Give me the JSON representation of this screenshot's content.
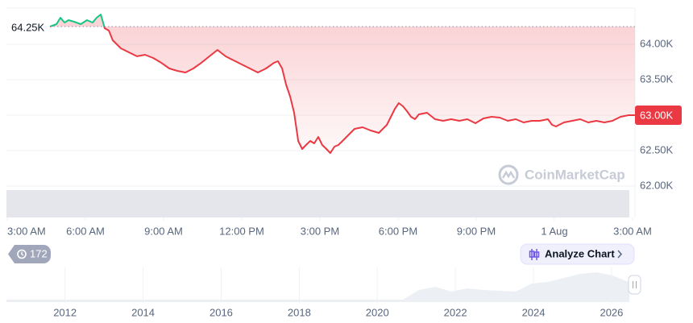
{
  "chart_data": {
    "type": "line",
    "x": [
      1.64,
      1.89,
      2.04,
      2.2,
      2.35,
      2.57,
      2.82,
      3.06,
      3.28,
      3.43,
      3.59,
      3.74,
      3.9,
      4.05,
      4.36,
      4.67,
      4.98,
      5.29,
      5.6,
      5.91,
      6.22,
      6.53,
      6.84,
      7.14,
      7.45,
      7.76,
      8.07,
      8.38,
      8.69,
      9.0,
      9.31,
      9.62,
      9.93,
      10.24,
      10.39,
      10.55,
      10.7,
      10.86,
      11.01,
      11.17,
      11.32,
      11.47,
      11.63,
      11.78,
      11.94,
      12.09,
      12.25,
      12.4,
      12.56,
      12.71,
      12.87,
      13.02,
      13.33,
      13.64,
      13.95,
      14.26,
      14.57,
      14.88,
      15.03,
      15.19,
      15.34,
      15.5,
      15.65,
      15.8,
      16.11,
      16.42,
      16.73,
      17.04,
      17.35,
      17.66,
      17.97,
      18.28,
      18.59,
      18.9,
      19.21,
      19.52,
      19.82,
      20.13,
      20.44,
      20.75,
      20.91,
      21.06,
      21.37,
      21.68,
      21.99,
      22.3,
      22.61,
      22.92,
      23.23,
      23.54,
      23.85,
      24.09
    ],
    "series": [
      {
        "color": "#ea3943",
        "up_color": "#16c784",
        "values": [
          64250,
          64284,
          64375,
          64307,
          64341,
          64318,
          64284,
          64341,
          64307,
          64375,
          64420,
          64227,
          64193,
          64057,
          63943,
          63886,
          63830,
          63852,
          63807,
          63739,
          63659,
          63625,
          63602,
          63659,
          63739,
          63830,
          63920,
          63830,
          63773,
          63716,
          63659,
          63602,
          63659,
          63739,
          63761,
          63659,
          63432,
          63261,
          63034,
          62636,
          62523,
          62580,
          62636,
          62602,
          62693,
          62580,
          62523,
          62466,
          62557,
          62580,
          62636,
          62693,
          62807,
          62830,
          62784,
          62750,
          62864,
          63091,
          63170,
          63125,
          63057,
          62977,
          62943,
          63011,
          63034,
          62943,
          62920,
          62943,
          62920,
          62943,
          62886,
          62955,
          62977,
          62966,
          62920,
          62943,
          62898,
          62920,
          62920,
          62943,
          62864,
          62841,
          62898,
          62920,
          62943,
          62898,
          62920,
          62898,
          62920,
          62977,
          63000,
          63000
        ]
      }
    ],
    "xlim": [
      0,
      24.1
    ],
    "xticks": [
      {
        "value": 0,
        "label": "3:00 AM"
      },
      {
        "value": 3,
        "label": "6:00 AM"
      },
      {
        "value": 6,
        "label": "9:00 AM"
      },
      {
        "value": 9,
        "label": "12:00 PM"
      },
      {
        "value": 12,
        "label": "3:00 PM"
      },
      {
        "value": 15,
        "label": "6:00 PM"
      },
      {
        "value": 18,
        "label": "9:00 PM"
      },
      {
        "value": 21,
        "label": "1 Aug"
      },
      {
        "value": 24,
        "label": "3:00 AM"
      }
    ],
    "ylim": [
      61557,
      64511
    ],
    "yticks": [
      {
        "value": 62000,
        "label": "62.00K"
      },
      {
        "value": 62500,
        "label": "62.50K"
      },
      {
        "value": 63000,
        "label": "63.00K"
      },
      {
        "value": 63500,
        "label": "63.50K"
      },
      {
        "value": 64000,
        "label": "64.00K"
      }
    ],
    "grid": true,
    "reference_line": {
      "value": 64250,
      "label": "64.25K"
    },
    "current_price": {
      "value": 63000,
      "label": "63.00K"
    },
    "watermark": "CoinMarketCap",
    "navigator": {
      "xlim": [
        2010.5,
        2026.6
      ],
      "xticks": [
        2012,
        2014,
        2016,
        2018,
        2020,
        2022,
        2024,
        2026
      ]
    }
  },
  "controls": {
    "badge": "172",
    "analyze_button": "Analyze Chart"
  }
}
